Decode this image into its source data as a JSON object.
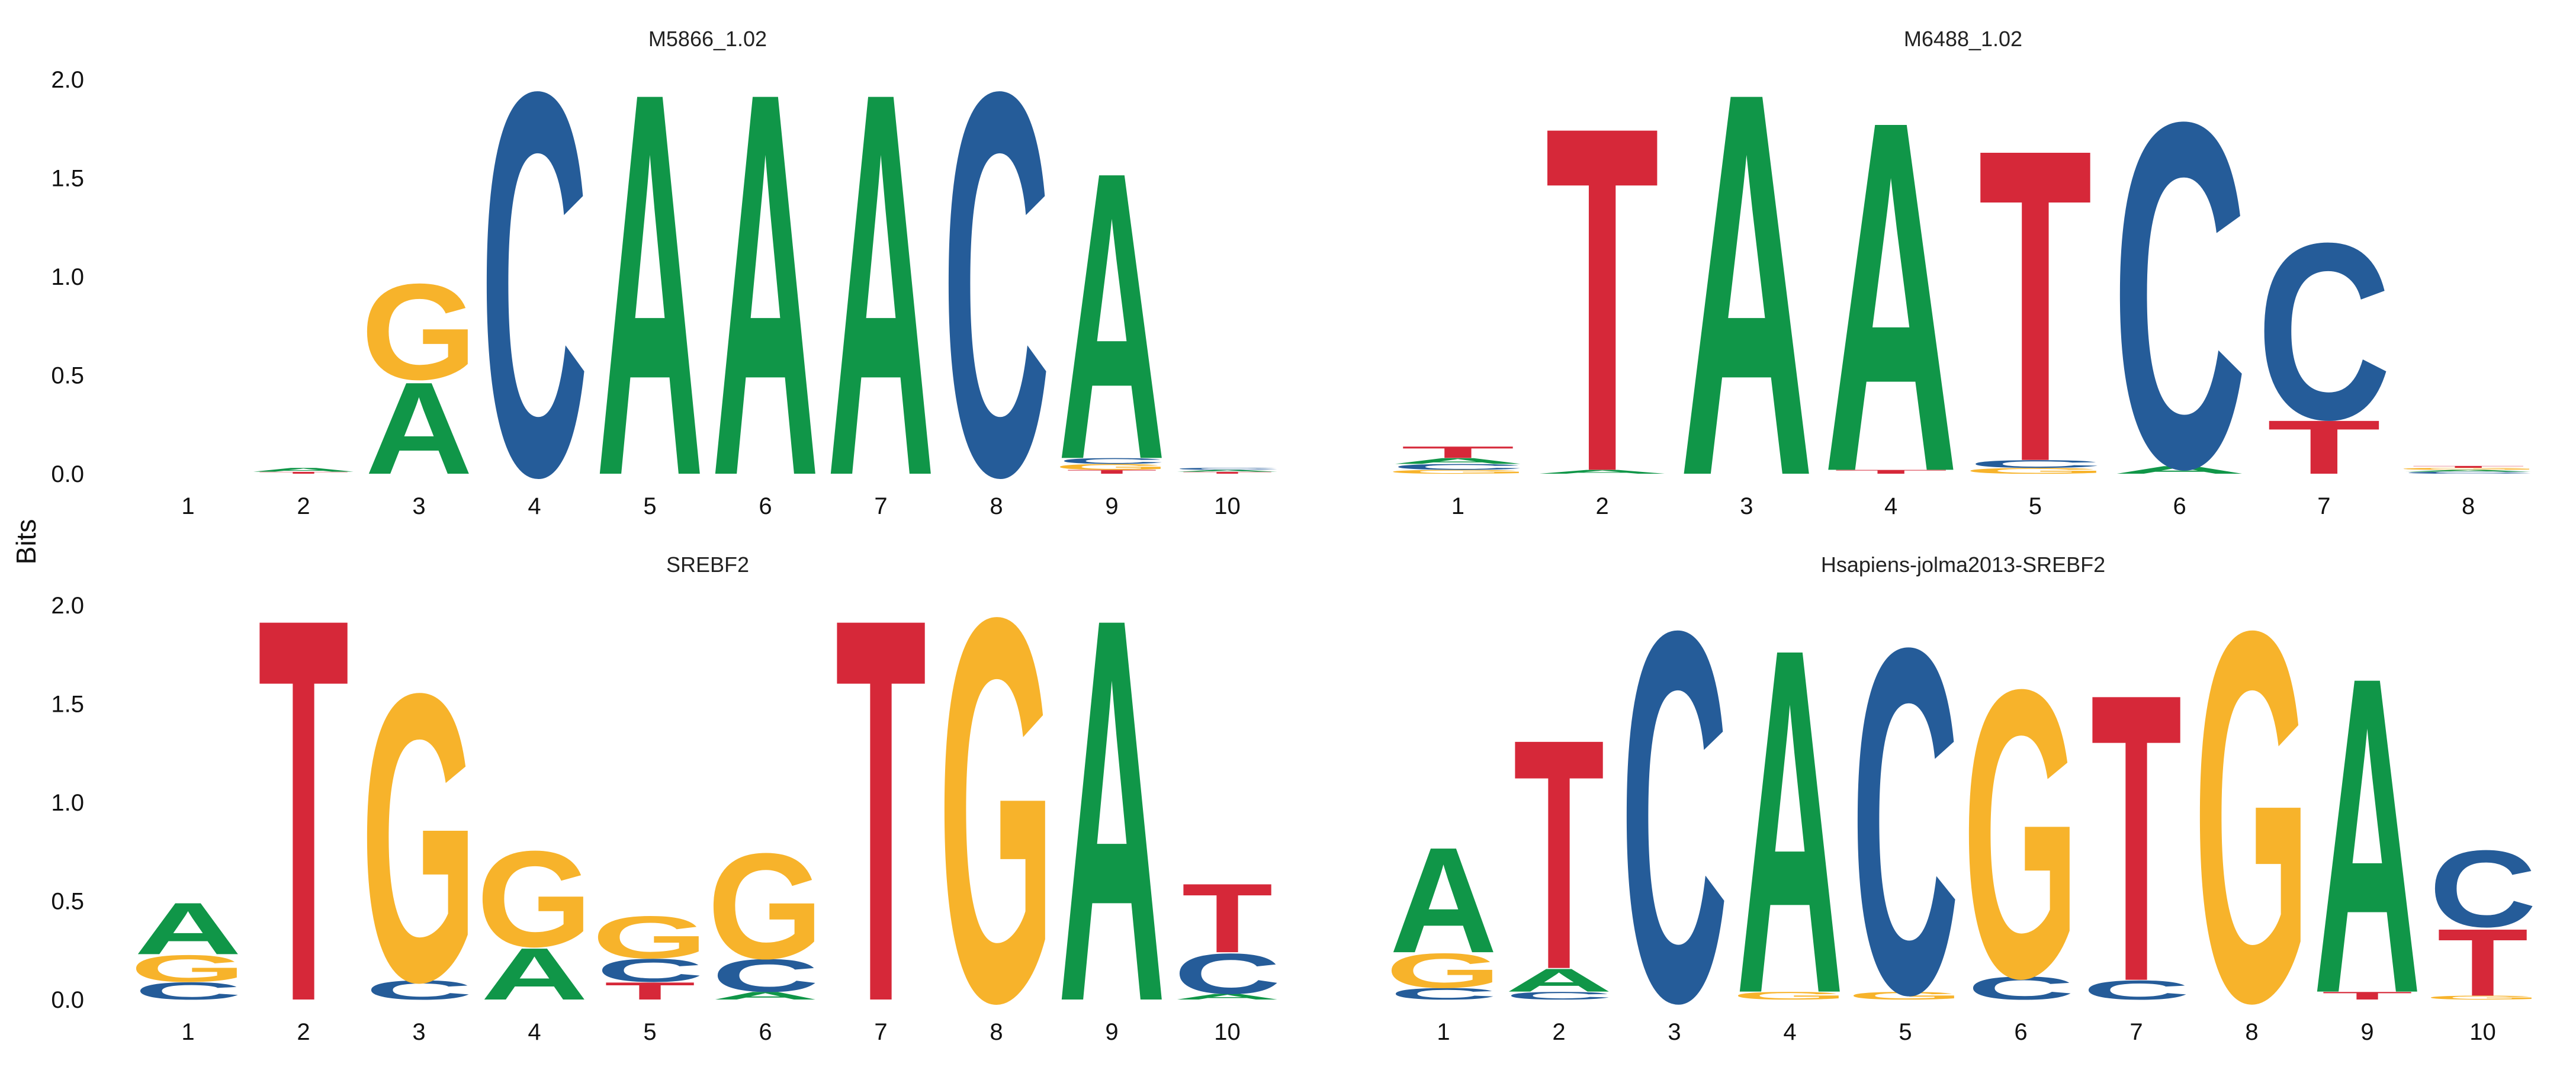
{
  "figure": {
    "ylabel": "Bits",
    "y_ticks": [
      "0.0",
      "0.5",
      "1.0",
      "1.5",
      "2.0"
    ]
  },
  "colors": {
    "A": "#109648",
    "C": "#255C99",
    "G": "#F7B32B",
    "T": "#D62839"
  },
  "chart_data": [
    {
      "type": "sequence-logo",
      "title": "M5866_1.02",
      "ylim": [
        0,
        2
      ],
      "positions": [
        "1",
        "2",
        "3",
        "4",
        "5",
        "6",
        "7",
        "8",
        "9",
        "10"
      ],
      "stacks": [
        [],
        [
          [
            "T",
            0.01
          ],
          [
            "A",
            0.02
          ]
        ],
        [
          [
            "A",
            0.48
          ],
          [
            "G",
            0.5
          ]
        ],
        [
          [
            "C",
            2.0
          ]
        ],
        [
          [
            "A",
            2.0
          ]
        ],
        [
          [
            "A",
            2.0
          ]
        ],
        [
          [
            "A",
            2.0
          ]
        ],
        [
          [
            "C",
            2.0
          ]
        ],
        [
          [
            "T",
            0.02
          ],
          [
            "G",
            0.03
          ],
          [
            "C",
            0.03
          ],
          [
            "A",
            1.5
          ]
        ],
        [
          [
            "T",
            0.01
          ],
          [
            "A",
            0.01
          ],
          [
            "C",
            0.01
          ]
        ]
      ]
    },
    {
      "type": "sequence-logo",
      "title": "M6488_1.02",
      "ylim": [
        0,
        2
      ],
      "positions": [
        "1",
        "2",
        "3",
        "4",
        "5",
        "6",
        "7",
        "8"
      ],
      "stacks": [
        [
          [
            "G",
            0.02
          ],
          [
            "C",
            0.03
          ],
          [
            "A",
            0.03
          ],
          [
            "T",
            0.06
          ]
        ],
        [
          [
            "A",
            0.02
          ],
          [
            "T",
            1.8
          ]
        ],
        [
          [
            "A",
            2.0
          ]
        ],
        [
          [
            "T",
            0.02
          ],
          [
            "A",
            1.83
          ]
        ],
        [
          [
            "G",
            0.03
          ],
          [
            "C",
            0.04
          ],
          [
            "T",
            1.63
          ]
        ],
        [
          [
            "A",
            0.04
          ],
          [
            "C",
            1.8
          ]
        ],
        [
          [
            "T",
            0.28
          ],
          [
            "C",
            0.92
          ]
        ],
        [
          [
            "C",
            0.01
          ],
          [
            "A",
            0.01
          ],
          [
            "G",
            0.01
          ],
          [
            "T",
            0.01
          ]
        ]
      ]
    },
    {
      "type": "sequence-logo",
      "title": "SREBF2",
      "ylim": [
        0,
        2
      ],
      "positions": [
        "1",
        "2",
        "3",
        "4",
        "5",
        "6",
        "7",
        "8",
        "9",
        "10"
      ],
      "stacks": [
        [
          [
            "C",
            0.09
          ],
          [
            "G",
            0.14
          ],
          [
            "A",
            0.27
          ]
        ],
        [
          [
            "T",
            2.0
          ]
        ],
        [
          [
            "C",
            0.1
          ],
          [
            "G",
            1.5
          ]
        ],
        [
          [
            "A",
            0.27
          ],
          [
            "G",
            0.5
          ]
        ],
        [
          [
            "T",
            0.09
          ],
          [
            "C",
            0.12
          ],
          [
            "G",
            0.22
          ]
        ],
        [
          [
            "A",
            0.04
          ],
          [
            "C",
            0.17
          ],
          [
            "G",
            0.55
          ]
        ],
        [
          [
            "T",
            2.0
          ]
        ],
        [
          [
            "G",
            2.0
          ]
        ],
        [
          [
            "A",
            2.0
          ]
        ],
        [
          [
            "A",
            0.03
          ],
          [
            "C",
            0.21
          ],
          [
            "T",
            0.36
          ]
        ]
      ]
    },
    {
      "type": "sequence-logo",
      "title": "Hsapiens-jolma2013-SREBF2",
      "ylim": [
        0,
        2
      ],
      "positions": [
        "1",
        "2",
        "3",
        "4",
        "5",
        "6",
        "7",
        "8",
        "9",
        "10"
      ],
      "stacks": [
        [
          [
            "C",
            0.06
          ],
          [
            "G",
            0.18
          ],
          [
            "A",
            0.55
          ]
        ],
        [
          [
            "C",
            0.04
          ],
          [
            "A",
            0.12
          ],
          [
            "T",
            1.2
          ]
        ],
        [
          [
            "C",
            1.93
          ]
        ],
        [
          [
            "G",
            0.04
          ],
          [
            "A",
            1.8
          ]
        ],
        [
          [
            "G",
            0.04
          ],
          [
            "C",
            1.8
          ]
        ],
        [
          [
            "C",
            0.12
          ],
          [
            "G",
            1.5
          ]
        ],
        [
          [
            "C",
            0.1
          ],
          [
            "T",
            1.5
          ]
        ],
        [
          [
            "G",
            1.93
          ]
        ],
        [
          [
            "T",
            0.04
          ],
          [
            "A",
            1.65
          ]
        ],
        [
          [
            "G",
            0.02
          ],
          [
            "T",
            0.35
          ],
          [
            "C",
            0.4
          ]
        ]
      ]
    }
  ]
}
